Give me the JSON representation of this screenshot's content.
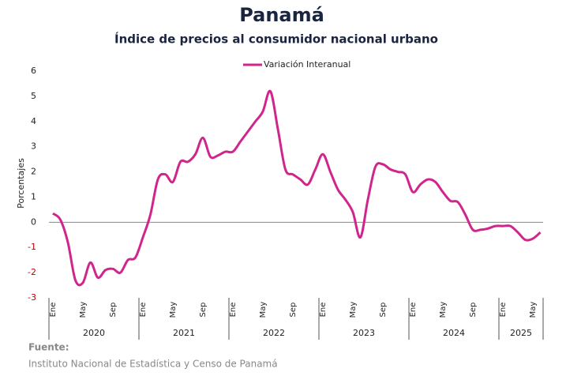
{
  "chart_data": {
    "type": "line",
    "title": "Panamá",
    "subtitle": "Índice de precios al consumidor nacional urbano",
    "y_label": "Porcentajes",
    "categories": [
      "Ene",
      null,
      null,
      null,
      "May",
      null,
      null,
      null,
      "Sep",
      null,
      null,
      null,
      "Ene",
      null,
      null,
      null,
      "May",
      null,
      null,
      null,
      "Sep",
      null,
      null,
      null,
      "Ene",
      null,
      null,
      null,
      "May",
      null,
      null,
      null,
      "Sep",
      null,
      null,
      null,
      "Ene",
      null,
      null,
      null,
      "May",
      null,
      null,
      null,
      "Sep",
      null,
      null,
      null,
      "Ene",
      null,
      null,
      null,
      "May",
      null,
      null,
      null,
      "Sep",
      null,
      null,
      null,
      "Ene",
      null,
      null,
      null,
      "May",
      null
    ],
    "years": [
      "2020",
      "2021",
      "2022",
      "2023",
      "2024",
      "2025"
    ],
    "series": [
      {
        "name": "Variación Interanual",
        "color": "#d0258c",
        "values": [
          0.35,
          0.1,
          -0.8,
          -2.3,
          -2.4,
          -1.6,
          -2.2,
          -1.9,
          -1.85,
          -2.0,
          -1.5,
          -1.4,
          -0.6,
          0.3,
          1.7,
          1.9,
          1.6,
          2.4,
          2.4,
          2.7,
          3.35,
          2.6,
          2.65,
          2.8,
          2.8,
          3.2,
          3.6,
          4.0,
          4.4,
          5.2,
          3.7,
          2.1,
          1.9,
          1.7,
          1.5,
          2.1,
          2.7,
          2.0,
          1.3,
          0.9,
          0.4,
          -0.6,
          0.9,
          2.2,
          2.3,
          2.1,
          2.0,
          1.9,
          1.2,
          1.5,
          1.7,
          1.6,
          1.2,
          0.85,
          0.8,
          0.3,
          -0.3,
          -0.3,
          -0.25,
          -0.15,
          -0.15,
          -0.15,
          -0.4,
          -0.7,
          -0.65,
          -0.4
        ]
      }
    ],
    "ylim": [
      -3,
      6
    ],
    "yticks": [
      -3,
      -2,
      -1,
      0,
      1,
      2,
      3,
      4,
      5,
      6
    ],
    "negative_tick_color": "#c00000",
    "legend": "top",
    "source_label": "Fuente:",
    "source": "Instituto Nacional de Estadística y Censo de Panamá"
  }
}
